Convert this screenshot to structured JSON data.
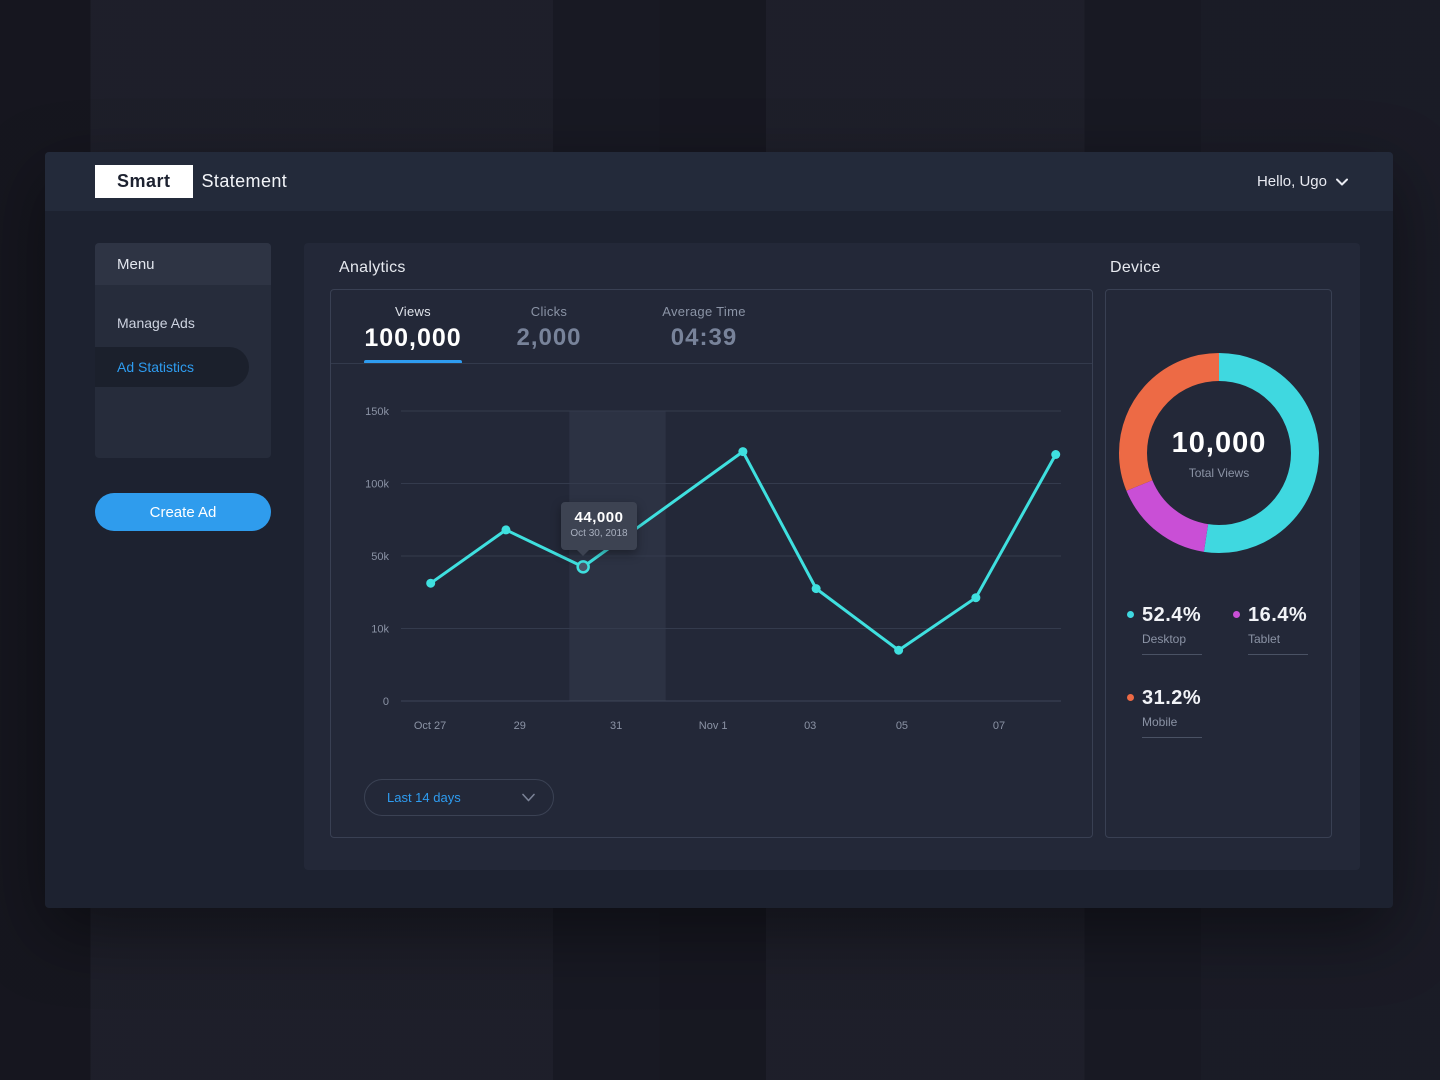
{
  "header": {
    "logo_primary": "Smart",
    "logo_secondary": "Statement",
    "user_greeting": "Hello, Ugo"
  },
  "sidebar": {
    "menu_title": "Menu",
    "items": [
      {
        "label": "Manage Ads",
        "active": false
      },
      {
        "label": "Ad Statistics",
        "active": true
      }
    ],
    "create_ad_label": "Create Ad"
  },
  "analytics": {
    "title": "Analytics",
    "tabs": [
      {
        "label": "Views",
        "value": "100,000",
        "active": true
      },
      {
        "label": "Clicks",
        "value": "2,000",
        "active": false
      },
      {
        "label": "Average Time",
        "value": "04:39",
        "active": false
      }
    ],
    "tooltip": {
      "value": "44,000",
      "date": "Oct 30, 2018"
    },
    "range_label": "Last 14 days"
  },
  "device": {
    "title": "Device",
    "center_value": "10,000",
    "center_label": "Total Views",
    "legend": [
      {
        "pct": "52.4%",
        "label": "Desktop"
      },
      {
        "pct": "16.4%",
        "label": "Tablet"
      },
      {
        "pct": "31.2%",
        "label": "Mobile"
      }
    ]
  },
  "colors": {
    "accent_blue": "#2e9cf0",
    "line_cyan": "#3fe0df",
    "donut_cyan": "#3fd8e0",
    "donut_magenta": "#c94fd6",
    "donut_orange": "#ed6a45"
  },
  "chart_data": [
    {
      "type": "line",
      "title": "Analytics - Views",
      "series_name": "Views",
      "color": "#3fe0df",
      "y_ticks": [
        {
          "label": "0",
          "value": 0
        },
        {
          "label": "10k",
          "value": 10000
        },
        {
          "label": "50k",
          "value": 50000
        },
        {
          "label": "100k",
          "value": 100000
        },
        {
          "label": "150k",
          "value": 150000
        }
      ],
      "x_labels": [
        {
          "label": "Oct 27",
          "xf": 0.044
        },
        {
          "label": "29",
          "xf": 0.18
        },
        {
          "label": "31",
          "xf": 0.326
        },
        {
          "label": "Nov 1",
          "xf": 0.473
        },
        {
          "label": "03",
          "xf": 0.62
        },
        {
          "label": "05",
          "xf": 0.759
        },
        {
          "label": "07",
          "xf": 0.906
        }
      ],
      "points": [
        {
          "xf": 0.045,
          "value": 35000
        },
        {
          "xf": 0.159,
          "value": 68000
        },
        {
          "xf": 0.276,
          "value": 44000,
          "active": true
        },
        {
          "xf": 0.518,
          "value": 122000
        },
        {
          "xf": 0.629,
          "value": 32000
        },
        {
          "xf": 0.754,
          "value": 7000
        },
        {
          "xf": 0.871,
          "value": 27000
        },
        {
          "xf": 0.992,
          "value": 120000
        }
      ],
      "highlight_band": {
        "from_xf": 0.255,
        "to_xf": 0.401
      },
      "grid": true,
      "legend_position": "none"
    },
    {
      "type": "pie",
      "title": "Device",
      "center_value": "10,000",
      "center_label": "Total Views",
      "segments": [
        {
          "label": "Desktop",
          "value": 52.4,
          "color": "#3fd8e0"
        },
        {
          "label": "Tablet",
          "value": 16.4,
          "color": "#c94fd6"
        },
        {
          "label": "Mobile",
          "value": 31.2,
          "color": "#ed6a45"
        }
      ]
    }
  ]
}
